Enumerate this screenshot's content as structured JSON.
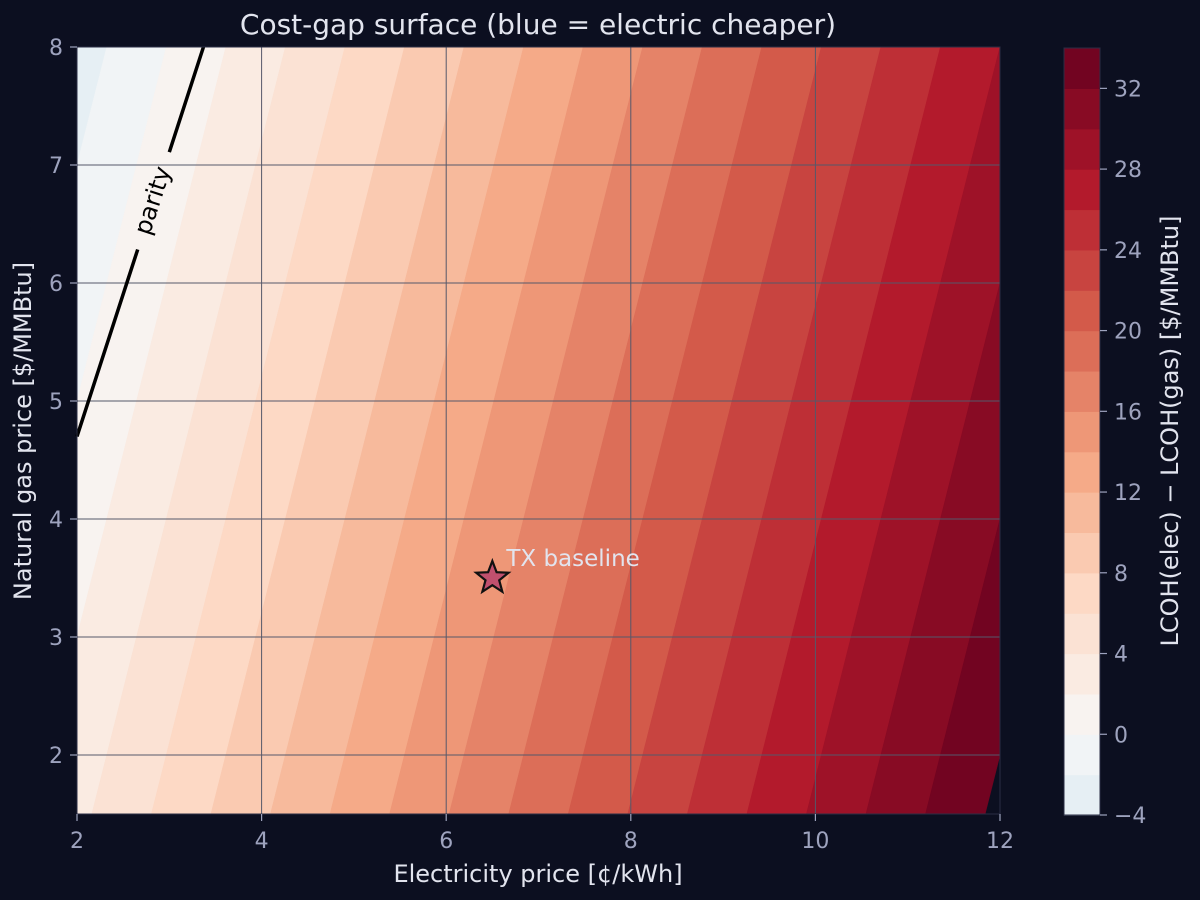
{
  "chart_data": {
    "type": "heatmap",
    "subtype": "filled-contour",
    "title": "Cost-gap surface (blue = electric cheaper)",
    "xlabel": "Electricity price  [¢/kWh]",
    "ylabel": "Natural gas price  [$/MMBtu]",
    "xlim": [
      2,
      12
    ],
    "ylim": [
      1.5,
      8
    ],
    "xticks": [
      2,
      4,
      6,
      8,
      10,
      12
    ],
    "yticks": [
      2,
      3,
      4,
      5,
      6,
      7,
      8
    ],
    "grid": true,
    "colorbar": {
      "label": "LCOH(elec) − LCOH(gas)  [$/MMBtu]",
      "range": [
        -4,
        34
      ],
      "level_step": 2,
      "ticks": [
        -4,
        0,
        4,
        8,
        12,
        16,
        20,
        24,
        28,
        32
      ],
      "tick_labels": [
        "−4",
        "0",
        "4",
        "8",
        "12",
        "16",
        "20",
        "24",
        "28",
        "32"
      ],
      "colormap": "RdBu_r",
      "placement": "right"
    },
    "surface": {
      "description": "gap is approximately linear in both prices",
      "value_at_x2_y8": -3,
      "value_at_x12_y1_5": 34,
      "gap_per_cent_kwh": 3.1,
      "gap_per_dollar_mmbtu": -1.0,
      "parity_points": [
        [
          2,
          4.7
        ],
        [
          3.37,
          8
        ]
      ]
    },
    "parity_label": "parity",
    "annotations": [
      {
        "label": "TX baseline",
        "x": 6.5,
        "y": 3.5,
        "marker": "star",
        "color": "#c0506e"
      }
    ],
    "colors": {
      "background": "#0c0f20",
      "text": "#e2e4ee",
      "tick_text": "#9ea3be",
      "grid": "#55586a",
      "parity_line": "#000000"
    }
  }
}
